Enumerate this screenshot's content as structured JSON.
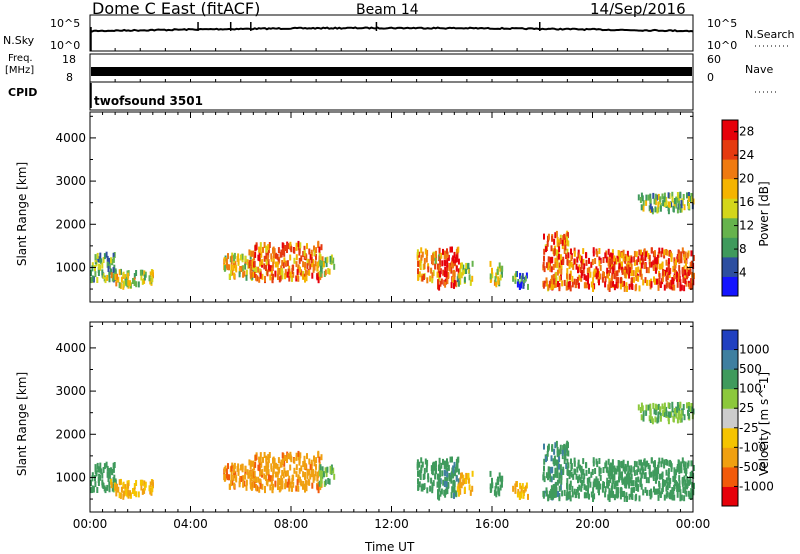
{
  "header": {
    "radar": "Dome C East (fitACF)",
    "beam": "Beam 14",
    "date": "14/Sep/2016"
  },
  "nsky_panel": {
    "left_label": "N.Sky",
    "left_ticks": [
      "10^5",
      "10^0"
    ],
    "right_ticks": [
      "10^5",
      "10^0"
    ],
    "right_label": "N.Search"
  },
  "freq_panel": {
    "left_label_1": "Freq.",
    "left_label_2": "[MHz]",
    "left_ticks": [
      "18",
      "8"
    ],
    "right_ticks": [
      "60",
      "0"
    ],
    "right_label": "Nave"
  },
  "cpid_panel": {
    "label": "CPID",
    "program": "twofsound 3501"
  },
  "colors": {
    "power_scale": [
      "#1414ff",
      "#2d4fa0",
      "#3f9a5c",
      "#66b34d",
      "#d4d61a",
      "#f5b400",
      "#ef7a10",
      "#e53a0f",
      "#e6000a"
    ],
    "velocity_scale": [
      "#e6000a",
      "#f25a0a",
      "#f0a010",
      "#f5c400",
      "#cccccc",
      "#8cc83c",
      "#3f9a5c",
      "#3f7fa0",
      "#2040c0"
    ]
  },
  "chart_data": [
    {
      "type": "heatmap",
      "title": "",
      "xlabel": "",
      "ylabel": "Slant Range [km]",
      "x_ticks": [
        "00:00",
        "04:00",
        "08:00",
        "12:00",
        "16:00",
        "20:00",
        "00:00"
      ],
      "y_ticks": [
        "1000",
        "2000",
        "3000",
        "4000"
      ],
      "xlim_hours": [
        0,
        24
      ],
      "ylim_km": [
        200,
        4600
      ],
      "colorbar": {
        "label": "Power [dB]",
        "range": [
          0,
          30
        ],
        "ticks": [
          "4",
          "8",
          "12",
          "16",
          "20",
          "24",
          "28"
        ]
      },
      "echo_regions": [
        {
          "t0": 0.0,
          "t1": 1.0,
          "r0": 700,
          "r1": 1300,
          "power": 10
        },
        {
          "t0": 0.8,
          "t1": 2.5,
          "r0": 550,
          "r1": 900,
          "power": 14
        },
        {
          "t0": 5.3,
          "t1": 6.5,
          "r0": 750,
          "r1": 1300,
          "power": 16
        },
        {
          "t0": 6.3,
          "t1": 9.2,
          "r0": 700,
          "r1": 1550,
          "power": 22
        },
        {
          "t0": 9.1,
          "t1": 9.7,
          "r0": 800,
          "r1": 1250,
          "power": 14
        },
        {
          "t0": 13.0,
          "t1": 13.9,
          "r0": 700,
          "r1": 1400,
          "power": 20
        },
        {
          "t0": 13.8,
          "t1": 14.7,
          "r0": 500,
          "r1": 1450,
          "power": 26
        },
        {
          "t0": 14.6,
          "t1": 15.2,
          "r0": 600,
          "r1": 1100,
          "power": 12
        },
        {
          "t0": 15.9,
          "t1": 16.4,
          "r0": 600,
          "r1": 1100,
          "power": 14
        },
        {
          "t0": 16.8,
          "t1": 17.4,
          "r0": 500,
          "r1": 850,
          "power": 8
        },
        {
          "t0": 18.0,
          "t1": 19.0,
          "r0": 500,
          "r1": 1800,
          "power": 22
        },
        {
          "t0": 19.0,
          "t1": 24.0,
          "r0": 500,
          "r1": 1400,
          "power": 24
        },
        {
          "t0": 21.8,
          "t1": 24.0,
          "r0": 2300,
          "r1": 2700,
          "power": 12
        }
      ]
    },
    {
      "type": "heatmap",
      "title": "",
      "xlabel": "Time UT",
      "ylabel": "Slant Range [km]",
      "x_ticks": [
        "00:00",
        "04:00",
        "08:00",
        "12:00",
        "16:00",
        "20:00",
        "00:00"
      ],
      "y_ticks": [
        "1000",
        "2000",
        "3000",
        "4000"
      ],
      "xlim_hours": [
        0,
        24
      ],
      "ylim_km": [
        200,
        4600
      ],
      "colorbar": {
        "label": "Velocity [m s^-1]",
        "ticks": [
          "1000",
          "500",
          "100",
          "25",
          "-25",
          "-100",
          "-500",
          "-1000"
        ]
      },
      "echo_regions": [
        {
          "t0": 0.0,
          "t1": 1.0,
          "r0": 700,
          "r1": 1300,
          "velocity": 150
        },
        {
          "t0": 0.8,
          "t1": 2.5,
          "r0": 550,
          "r1": 900,
          "velocity": -100
        },
        {
          "t0": 5.3,
          "t1": 6.5,
          "r0": 750,
          "r1": 1300,
          "velocity": -400
        },
        {
          "t0": 6.3,
          "t1": 9.2,
          "r0": 700,
          "r1": 1550,
          "velocity": -400
        },
        {
          "t0": 9.1,
          "t1": 9.7,
          "r0": 800,
          "r1": 1250,
          "velocity": 100
        },
        {
          "t0": 13.0,
          "t1": 13.9,
          "r0": 700,
          "r1": 1400,
          "velocity": 200
        },
        {
          "t0": 13.8,
          "t1": 14.7,
          "r0": 500,
          "r1": 1450,
          "velocity": 400
        },
        {
          "t0": 14.6,
          "t1": 15.2,
          "r0": 600,
          "r1": 1100,
          "velocity": -100
        },
        {
          "t0": 15.9,
          "t1": 16.4,
          "r0": 600,
          "r1": 1100,
          "velocity": 300
        },
        {
          "t0": 16.8,
          "t1": 17.4,
          "r0": 500,
          "r1": 850,
          "velocity": -100
        },
        {
          "t0": 18.0,
          "t1": 19.0,
          "r0": 500,
          "r1": 1800,
          "velocity": 400
        },
        {
          "t0": 19.0,
          "t1": 24.0,
          "r0": 500,
          "r1": 1400,
          "velocity": 300
        },
        {
          "t0": 21.8,
          "t1": 24.0,
          "r0": 2300,
          "r1": 2700,
          "velocity": 100
        }
      ]
    }
  ]
}
